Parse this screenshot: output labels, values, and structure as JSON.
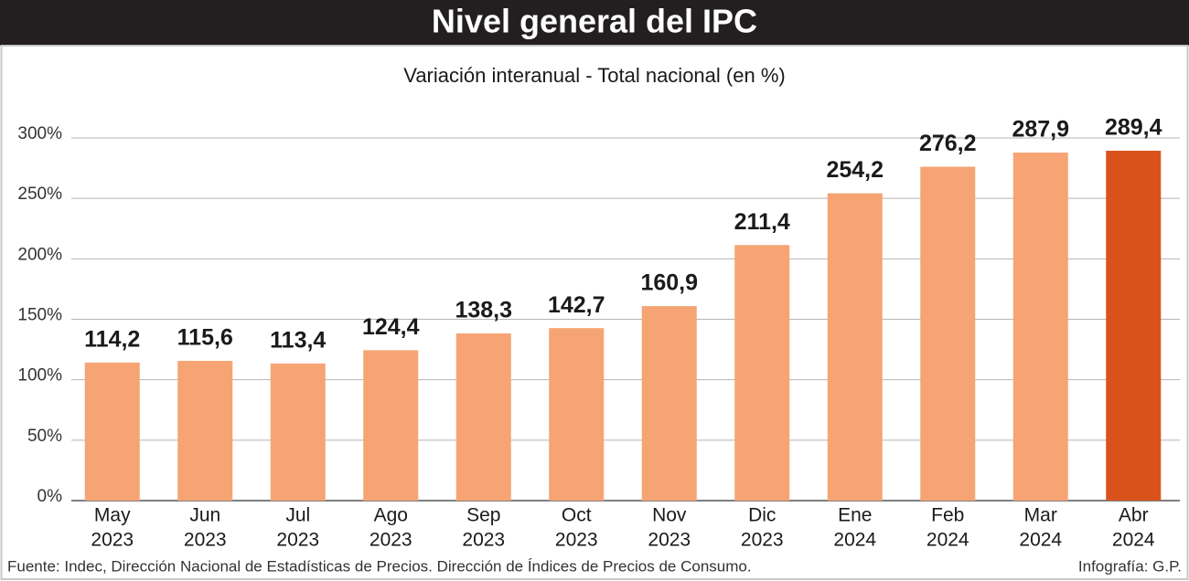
{
  "chart_data": {
    "type": "bar",
    "title": "Nivel general del IPC",
    "subtitle": "Variación interanual - Total nacional (en %)",
    "categories": [
      [
        "May",
        "2023"
      ],
      [
        "Jun",
        "2023"
      ],
      [
        "Jul",
        "2023"
      ],
      [
        "Ago",
        "2023"
      ],
      [
        "Sep",
        "2023"
      ],
      [
        "Oct",
        "2023"
      ],
      [
        "Nov",
        "2023"
      ],
      [
        "Dic",
        "2023"
      ],
      [
        "Ene",
        "2024"
      ],
      [
        "Feb",
        "2024"
      ],
      [
        "Mar",
        "2024"
      ],
      [
        "Abr",
        "2024"
      ]
    ],
    "values": [
      114.2,
      115.6,
      113.4,
      124.4,
      138.3,
      142.7,
      160.9,
      211.4,
      254.2,
      276.2,
      287.9,
      289.4
    ],
    "value_labels": [
      "114,2",
      "115,6",
      "113,4",
      "124,4",
      "138,3",
      "142,7",
      "160,9",
      "211,4",
      "254,2",
      "276,2",
      "287,9",
      "289,4"
    ],
    "colors": [
      "#f6a474",
      "#f6a474",
      "#f6a474",
      "#f6a474",
      "#f6a474",
      "#f6a474",
      "#f6a474",
      "#f6a474",
      "#f6a474",
      "#f6a474",
      "#f6a474",
      "#d9521c"
    ],
    "ylim": [
      0,
      300
    ],
    "yticks": [
      {
        "value": 0,
        "label": "0%"
      },
      {
        "value": 50,
        "label": "50%"
      },
      {
        "value": 100,
        "label": "100%"
      },
      {
        "value": 150,
        "label": "150%"
      },
      {
        "value": 200,
        "label": "200%"
      },
      {
        "value": 250,
        "label": "250%"
      },
      {
        "value": 300,
        "label": "300%"
      }
    ],
    "grid": true,
    "source": "Fuente: Indec, Dirección Nacional de Estadísticas de Precios. Dirección de Índices de Precios de Consumo.",
    "credit": "Infografía: G.P."
  }
}
